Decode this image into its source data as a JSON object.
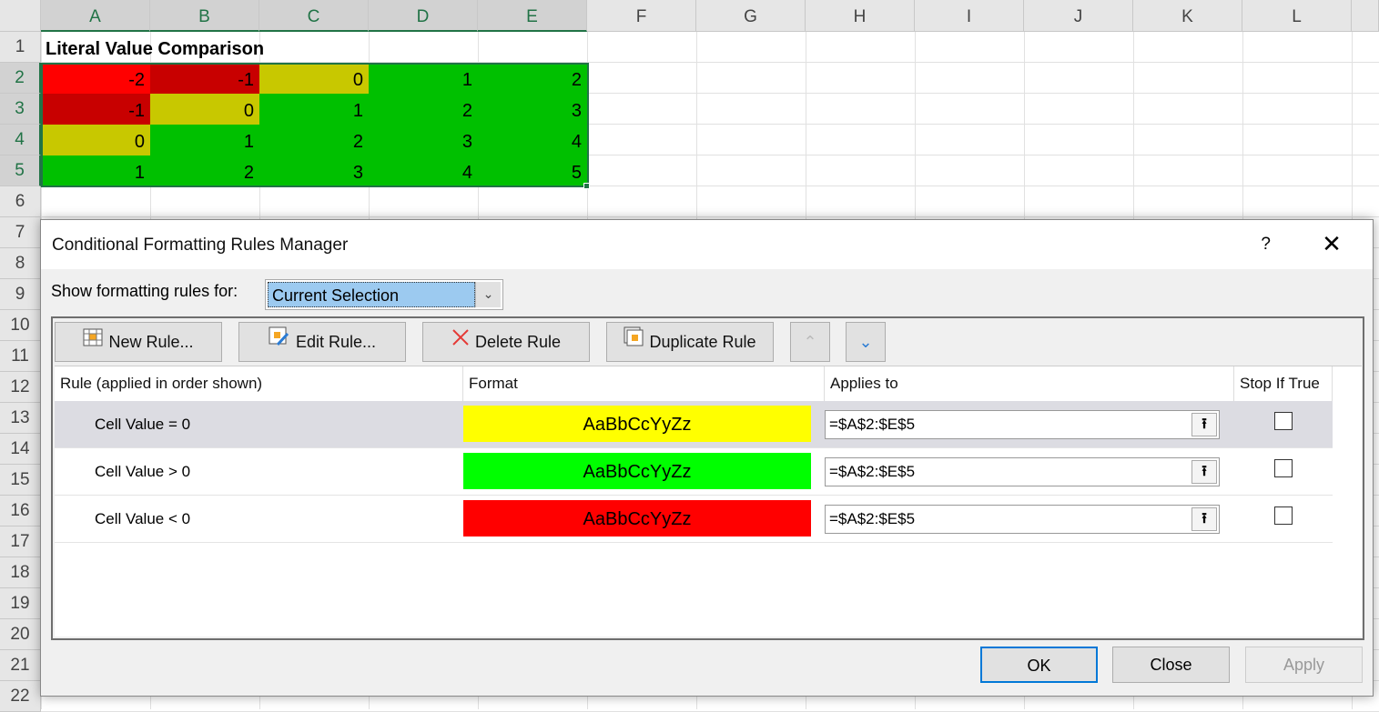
{
  "sheet": {
    "columns": [
      "A",
      "B",
      "C",
      "D",
      "E",
      "F",
      "G",
      "H",
      "I",
      "J",
      "K",
      "L"
    ],
    "rows": [
      "1",
      "2",
      "3",
      "4",
      "5",
      "6",
      "7",
      "8",
      "9",
      "10",
      "11",
      "12",
      "13",
      "14",
      "15",
      "16",
      "17",
      "18",
      "19",
      "20",
      "21",
      "22"
    ],
    "title": "Literal Value Comparison",
    "values": [
      [
        -2,
        -1,
        0,
        1,
        2
      ],
      [
        -1,
        0,
        1,
        2,
        3
      ],
      [
        0,
        1,
        2,
        3,
        4
      ],
      [
        1,
        2,
        3,
        4,
        5
      ]
    ],
    "fill_colors": {
      "-2": "#ff0000",
      "-1": "#c80000",
      "0": "#c8c800",
      "positive": "#00c000"
    }
  },
  "dialog": {
    "title": "Conditional Formatting Rules Manager",
    "help": "?",
    "show_label": "Show formatting rules for:",
    "show_value": "Current Selection",
    "toolbar": {
      "new_rule": "New Rule...",
      "edit_rule": "Edit Rule...",
      "delete_rule": "Delete Rule",
      "duplicate_rule": "Duplicate Rule"
    },
    "headers": {
      "rule": "Rule (applied in order shown)",
      "format": "Format",
      "applies": "Applies to",
      "stop": "Stop If True"
    },
    "rules": [
      {
        "name": "Cell Value = 0",
        "preview": "AaBbCcYyZz",
        "color": "#ffff00",
        "applies": "=$A$2:$E$5",
        "stop": false,
        "selected": true
      },
      {
        "name": "Cell Value > 0",
        "preview": "AaBbCcYyZz",
        "color": "#00ff00",
        "applies": "=$A$2:$E$5",
        "stop": false,
        "selected": false
      },
      {
        "name": "Cell Value < 0",
        "preview": "AaBbCcYyZz",
        "color": "#ff0000",
        "applies": "=$A$2:$E$5",
        "stop": false,
        "selected": false
      }
    ],
    "buttons": {
      "ok": "OK",
      "close": "Close",
      "apply": "Apply"
    }
  }
}
